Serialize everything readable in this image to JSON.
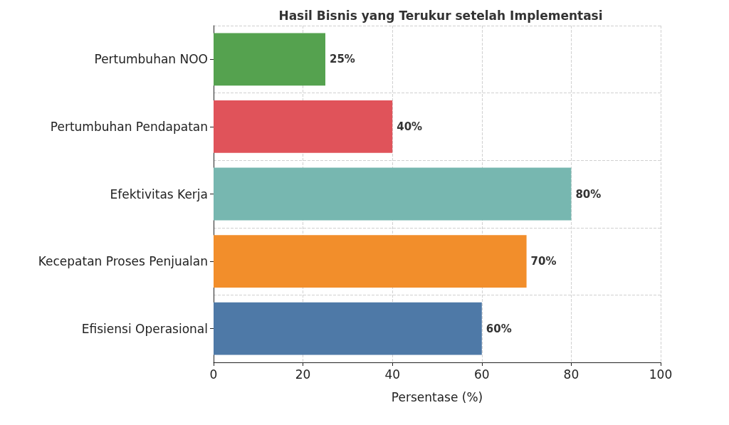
{
  "chart_data": {
    "type": "bar",
    "orientation": "horizontal",
    "title": "Hasil Bisnis yang Terukur setelah Implementasi",
    "categories": [
      "Pertumbuhan NOO",
      "Pertumbuhan Pendapatan",
      "Efektivitas Kerja",
      "Kecepatan Proses Penjualan",
      "Efisiensi Operasional"
    ],
    "values": [
      25,
      40,
      80,
      70,
      60
    ],
    "colors": [
      "#55a24f",
      "#e0535a",
      "#77b7b0",
      "#f28e2b",
      "#4e79a7"
    ],
    "value_labels": [
      "25%",
      "40%",
      "80%",
      "70%",
      "60%"
    ],
    "xlabel": "Persentase (%)",
    "xlim": [
      0,
      100
    ],
    "xticks": [
      0,
      20,
      40,
      60,
      80,
      100
    ],
    "grid": true
  }
}
